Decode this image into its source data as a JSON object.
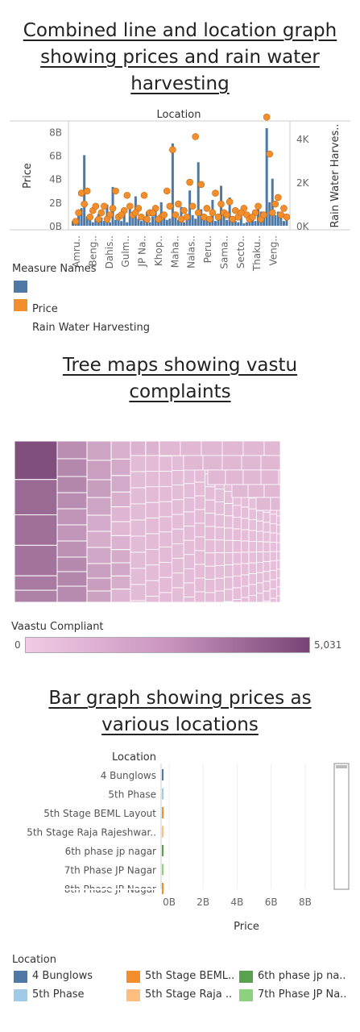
{
  "section1": {
    "title_lines": [
      "Combined line and location graph",
      "showing prices and rain water",
      "harvesting"
    ]
  },
  "section2": {
    "title_lines": [
      "Tree maps showing vastu",
      "complaints"
    ]
  },
  "section3": {
    "title_lines": [
      "Bar graph showing prices as",
      "various locations"
    ]
  },
  "colors": {
    "price": "#4e79a7",
    "rain": "#f28e2b",
    "tree_light": "#f1cbe4",
    "tree_dark": "#774475"
  },
  "chart_data": [
    {
      "type": "bar",
      "title": "",
      "column_header": "Location",
      "ylabel": "Price",
      "y2label": "Rain Water Harves..",
      "yticks": [
        "8B",
        "6B",
        "4B",
        "2B",
        "0B"
      ],
      "y2ticks": [
        "4K",
        "2K",
        "0K"
      ],
      "ylim": [
        0,
        8.5
      ],
      "y2lim": [
        0,
        4.6
      ],
      "x_tick_labels": [
        "Amru..",
        "Beng..",
        "Dahis..",
        "Gulm..",
        "JP Na..",
        "Khop..",
        "Maha..",
        "Nalas..",
        "Peru..",
        "Sama..",
        "Secto..",
        "Thaku..",
        "Veng.."
      ],
      "price_values_B": [
        0.4,
        0.6,
        1.0,
        1.5,
        6.0,
        0.8,
        0.5,
        0.3,
        0.6,
        1.0,
        0.7,
        0.4,
        1.8,
        0.3,
        3.3,
        0.5,
        0.8,
        0.4,
        1.0,
        0.3,
        1.8,
        0.9,
        2.5,
        0.6,
        0.4,
        0.7,
        1.2,
        0.3,
        0.8,
        1.5,
        0.4,
        2.0,
        0.9,
        0.5,
        0.6,
        7.0,
        1.1,
        0.5,
        1.6,
        0.3,
        0.7,
        3.0,
        0.9,
        0.6,
        5.4,
        1.4,
        0.8,
        0.5,
        0.3,
        2.2,
        0.4,
        0.9,
        3.4,
        1.0,
        0.5,
        2.4,
        0.7,
        0.4,
        0.3,
        0.8,
        0.2,
        0.3,
        0.5,
        0.6,
        0.4,
        1.9,
        1.2,
        0.7,
        8.3,
        2.0,
        4.0,
        0.9,
        1.2,
        1.1,
        0.4,
        0.6
      ],
      "series": [
        {
          "name": "Price",
          "values_B": "price_values_B"
        },
        {
          "name": "Rain Water Harvesting",
          "points_K": [
            [
              1,
              0.2
            ],
            [
              3,
              1.5
            ],
            [
              5,
              1.6
            ],
            [
              7,
              0.7
            ],
            [
              9,
              0.3
            ],
            [
              11,
              0.9
            ],
            [
              13,
              0.5
            ],
            [
              15,
              1.6
            ],
            [
              16,
              0.4
            ],
            [
              18,
              0.7
            ],
            [
              19,
              1.4
            ],
            [
              21,
              0.5
            ],
            [
              23,
              0.8
            ],
            [
              25,
              1.4
            ],
            [
              26,
              0.3
            ],
            [
              27,
              0.6
            ],
            [
              29,
              0.8
            ],
            [
              31,
              0.4
            ],
            [
              33,
              1.6
            ],
            [
              35,
              3.5
            ],
            [
              36,
              0.5
            ],
            [
              37,
              1.0
            ],
            [
              38,
              0.3
            ],
            [
              39,
              0.7
            ],
            [
              41,
              2.0
            ],
            [
              42,
              0.9
            ],
            [
              43,
              4.1
            ],
            [
              44,
              0.6
            ],
            [
              45,
              1.9
            ],
            [
              46,
              0.4
            ],
            [
              47,
              0.8
            ],
            [
              48,
              0.3
            ],
            [
              50,
              1.5
            ],
            [
              52,
              1.0
            ],
            [
              53,
              0.6
            ],
            [
              55,
              1.1
            ],
            [
              56,
              0.3
            ],
            [
              57,
              0.7
            ],
            [
              58,
              0.4
            ],
            [
              60,
              0.8
            ],
            [
              61,
              0.5
            ],
            [
              62,
              0.3
            ],
            [
              64,
              0.6
            ],
            [
              65,
              0.9
            ],
            [
              66,
              0.3
            ],
            [
              67,
              0.5
            ],
            [
              68,
              5.0
            ],
            [
              69,
              3.3
            ],
            [
              70,
              0.6
            ],
            [
              71,
              1.0
            ],
            [
              72,
              1.3
            ],
            [
              73,
              0.5
            ],
            [
              74,
              0.8
            ],
            [
              75,
              0.4
            ],
            [
              2,
              0.6
            ],
            [
              4,
              1.0
            ],
            [
              6,
              0.4
            ],
            [
              8,
              0.9
            ],
            [
              10,
              0.6
            ],
            [
              12,
              0.3
            ],
            [
              14,
              0.8
            ],
            [
              17,
              0.5
            ],
            [
              20,
              0.9
            ],
            [
              22,
              0.6
            ],
            [
              24,
              0.4
            ],
            [
              28,
              0.6
            ],
            [
              30,
              0.3
            ],
            [
              32,
              0.5
            ],
            [
              34,
              0.9
            ],
            [
              40,
              0.4
            ],
            [
              49,
              0.6
            ],
            [
              51,
              0.4
            ],
            [
              54,
              0.5
            ],
            [
              59,
              0.6
            ],
            [
              63,
              0.4
            ]
          ]
        }
      ],
      "legend_title": "Measure Names",
      "legend": [
        {
          "name": "Price",
          "color": "#4e79a7"
        },
        {
          "name": "Rain Water Harvesting",
          "color": "#f28e2b"
        }
      ]
    },
    {
      "type": "heatmap",
      "title": "",
      "legend_title": "Vaastu Compliant",
      "range_min_label": "0",
      "range_max_label": "5,031",
      "range": [
        0,
        5031
      ]
    },
    {
      "type": "bar",
      "title": "",
      "column_header": "Location",
      "xlabel": "Price",
      "xticks": [
        "0B",
        "2B",
        "4B",
        "6B",
        "8B"
      ],
      "categories": [
        "4 Bunglows",
        "5th Phase",
        "5th Stage BEML Layout",
        "5th Stage Raja Rajeshwar..",
        "6th phase jp nagar",
        "7th Phase JP Nagar",
        "8th Phase JP Nagar"
      ],
      "values_B": [
        0.05,
        0.05,
        0.05,
        0.05,
        0.05,
        0.05,
        0.05
      ],
      "bar_colors": [
        "#4e79a7",
        "#a0cbe8",
        "#f28e2b",
        "#ffbe7d",
        "#59a14f",
        "#8cd17d",
        "#f28e2b"
      ],
      "legend_title": "Location",
      "legend": [
        {
          "name": "4 Bunglows",
          "color": "#4e79a7"
        },
        {
          "name": "5th Stage BEML..",
          "color": "#f28e2b"
        },
        {
          "name": "6th phase jp na..",
          "color": "#59a14f"
        },
        {
          "name": "5th Phase",
          "color": "#a0cbe8"
        },
        {
          "name": "5th Stage Raja ..",
          "color": "#ffbe7d"
        },
        {
          "name": "7th Phase JP Na..",
          "color": "#8cd17d"
        }
      ]
    }
  ]
}
